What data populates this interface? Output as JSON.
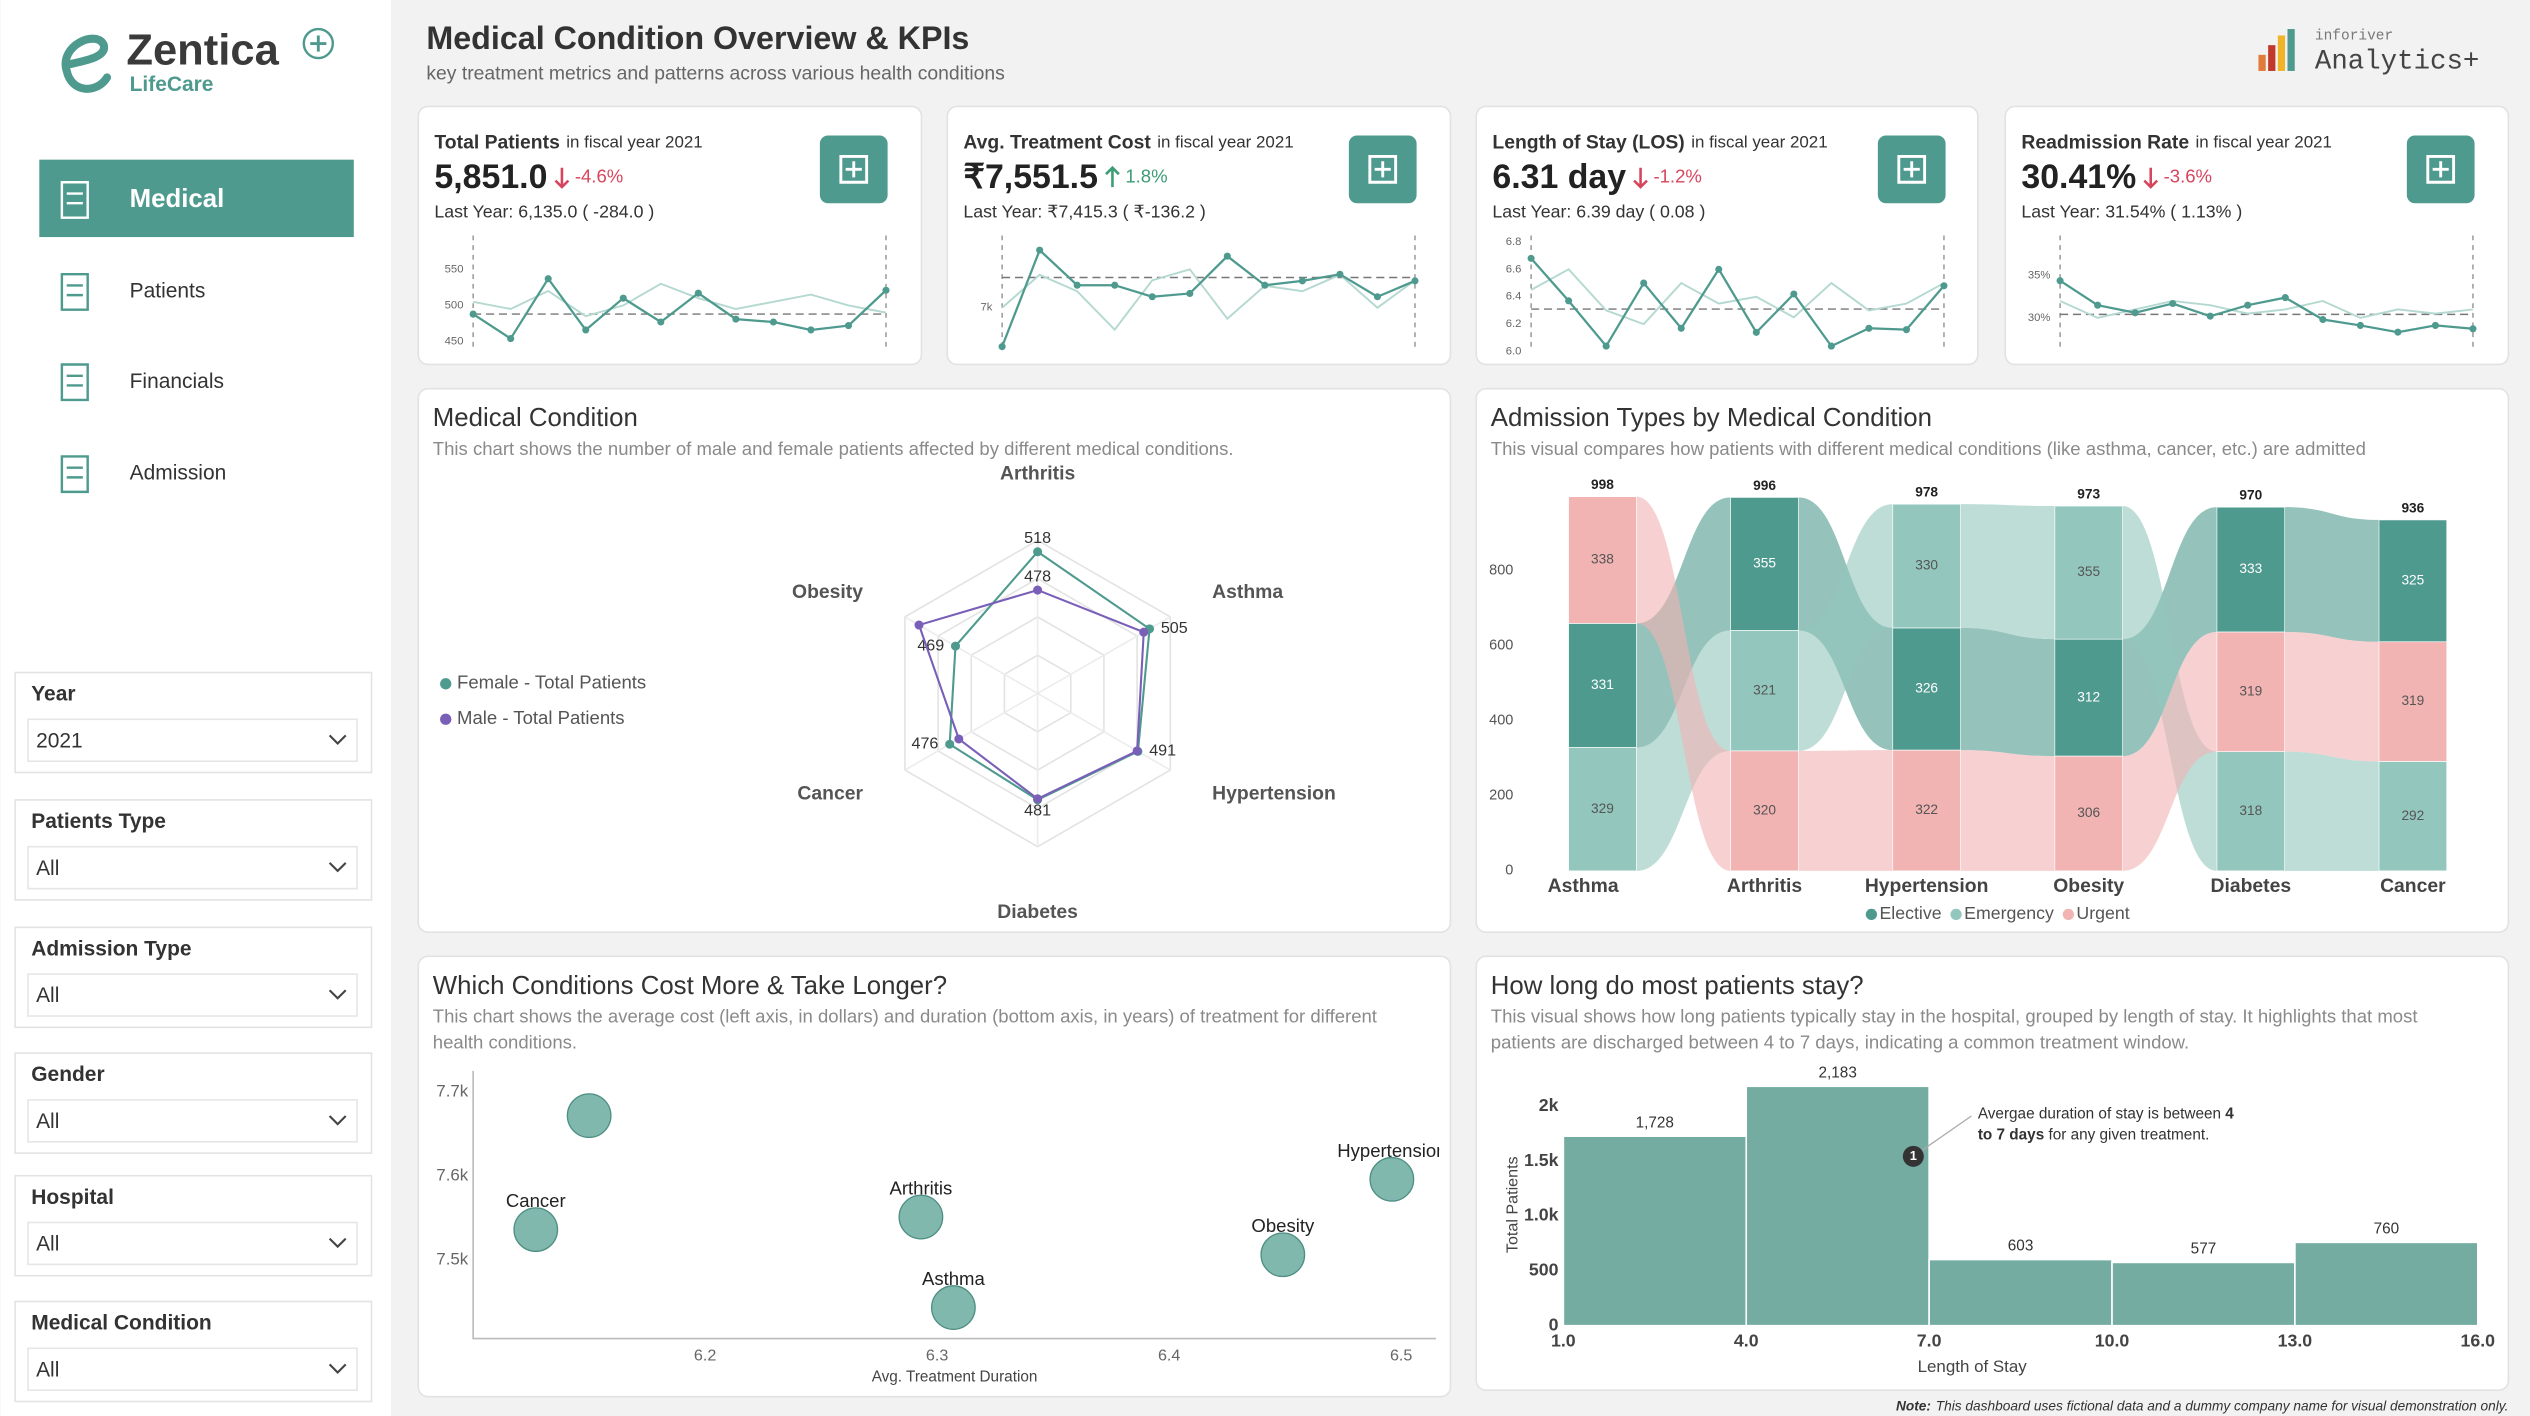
{
  "brand": {
    "name": "Zentica",
    "tagline": "LifeCare"
  },
  "nav": {
    "active": 0,
    "items": [
      "Medical",
      "Patients",
      "Financials",
      "Admission"
    ]
  },
  "filters": [
    {
      "label": "Year",
      "value": "2021"
    },
    {
      "label": "Patients Type",
      "value": "All"
    },
    {
      "label": "Admission Type",
      "value": "All"
    },
    {
      "label": "Gender",
      "value": "All"
    },
    {
      "label": "Hospital",
      "value": "All"
    },
    {
      "label": "Medical Condition",
      "value": "All"
    }
  ],
  "header": {
    "title": "Medical Condition Overview & KPIs",
    "subtitle": "key treatment metrics and patterns across various health conditions"
  },
  "vendor": {
    "name": "inforiver",
    "product": "Analytics+"
  },
  "note": {
    "label": "Note:",
    "text": "This dashboard uses fictional data and a dummy company name for visual demonstration only."
  },
  "chart_data": [
    {
      "type": "line",
      "title": "Total Patients",
      "subtitle": "in fiscal year 2021",
      "kpi_value": "5,851.0",
      "kpi_change": "-4.6%",
      "last_year": "Last Year: 6,135.0 ( -284.0 )",
      "ylim": [
        436,
        588
      ],
      "yticks": [
        450,
        500,
        550
      ],
      "reference": 488,
      "series": [
        {
          "color": "#b5d9d1",
          "values": [
            505,
            495,
            520,
            485,
            500,
            530,
            510,
            495,
            505,
            515,
            500,
            490
          ]
        },
        {
          "color": "#4e9a8e",
          "values": [
            488,
            454,
            537,
            466,
            510,
            477,
            517,
            481,
            477,
            466,
            472,
            521
          ]
        }
      ]
    },
    {
      "type": "line",
      "title": "Avg. Treatment Cost",
      "subtitle": "in fiscal year 2021",
      "kpi_value": "₹7,551.5",
      "kpi_change": "1.8%",
      "last_year": "Last Year: ₹7,415.3 ( ₹-136.2 )",
      "ylim": [
        6200,
        8200
      ],
      "yticks": [
        {
          "value": 7000,
          "label": "7k"
        }
      ],
      "reference": 7551,
      "series": [
        {
          "color": "#b5d9d1",
          "values": [
            7000,
            7600,
            7300,
            6600,
            7500,
            7700,
            6800,
            7400,
            7300,
            7600,
            7000,
            7500
          ]
        },
        {
          "color": "#4e9a8e",
          "values": [
            6290,
            8050,
            7410,
            7410,
            7200,
            7260,
            7940,
            7410,
            7490,
            7610,
            7200,
            7490
          ]
        }
      ]
    },
    {
      "type": "line",
      "title": "Length of Stay (LOS)",
      "subtitle": "in fiscal year 2021",
      "kpi_value": "6.31 day",
      "kpi_change": "-1.2%",
      "last_year": "Last Year: 6.39 day ( 0.08 )",
      "ylim": [
        6.0,
        6.8
      ],
      "yticks": [
        {
          "value": 6.0,
          "label": "6.0"
        },
        6.2,
        6.4,
        6.6,
        6.8
      ],
      "reference": 6.31,
      "series": [
        {
          "color": "#b5d9d1",
          "values": [
            6.45,
            6.6,
            6.3,
            6.2,
            6.5,
            6.35,
            6.4,
            6.25,
            6.5,
            6.3,
            6.35,
            6.5
          ]
        },
        {
          "color": "#4e9a8e",
          "values": [
            6.68,
            6.37,
            6.04,
            6.5,
            6.17,
            6.6,
            6.14,
            6.42,
            6.04,
            6.17,
            6.16,
            6.48
          ]
        }
      ]
    },
    {
      "type": "line",
      "title": "Readmission Rate",
      "subtitle": "in fiscal year 2021",
      "kpi_value": "30.41%",
      "kpi_change": "-3.6%",
      "last_year": "Last Year: 31.54% ( 1.13% )",
      "ylim": [
        26,
        39
      ],
      "yticks": [
        {
          "value": 30,
          "label": "30%"
        },
        {
          "value": 35,
          "label": "35%"
        }
      ],
      "reference": 30.41,
      "series": [
        {
          "color": "#b5d9d1",
          "values": [
            32,
            30,
            31,
            32,
            31.5,
            30.5,
            31,
            32,
            30,
            31,
            30.5,
            31
          ]
        },
        {
          "color": "#4e9a8e",
          "values": [
            34.4,
            31.5,
            30.6,
            31.7,
            30.2,
            31.5,
            32.4,
            29.8,
            29.1,
            28.3,
            29.1,
            28.7
          ]
        }
      ]
    },
    {
      "type": "radar",
      "title": "Medical Condition",
      "description": [
        "This chart shows the number of male and female patients affected by different medical conditions."
      ],
      "categories": [
        "Arthritis",
        "Asthma",
        "Hypertension",
        "Diabetes",
        "Cancer",
        "Obesity"
      ],
      "rlim": [
        370,
        530
      ],
      "series": [
        {
          "name": "Female - Total Patients",
          "color": "#4e9a8e",
          "values": [
            518,
            505,
            491,
            481,
            476,
            469
          ]
        },
        {
          "name": "Male - Total Patients",
          "color": "#7a5fb8",
          "values": [
            478,
            498,
            490,
            480,
            465,
            513
          ],
          "value_labels": [
            "478",
            null,
            null,
            null,
            null,
            null
          ]
        }
      ]
    },
    {
      "type": "ribbon",
      "title": "Admission Types by Medical Condition",
      "description": [
        "This visual compares how patients with different medical conditions (like asthma, cancer, etc.) are admitted"
      ],
      "categories": [
        "Asthma",
        "Arthritis",
        "Hypertension",
        "Obesity",
        "Diabetes",
        "Cancer"
      ],
      "ylim": [
        0,
        1000
      ],
      "yticks": [
        0,
        200,
        400,
        600,
        800
      ],
      "totals": [
        998,
        996,
        978,
        973,
        970,
        936
      ],
      "series": [
        {
          "name": "Elective",
          "color": "#4e9a8e",
          "values": [
            331,
            355,
            326,
            312,
            333,
            325
          ]
        },
        {
          "name": "Emergency",
          "color": "#93c7bd",
          "values": [
            329,
            321,
            330,
            355,
            318,
            292
          ]
        },
        {
          "name": "Urgent",
          "color": "#f2b3b3",
          "values": [
            338,
            320,
            322,
            306,
            319,
            319
          ]
        }
      ]
    },
    {
      "type": "scatter",
      "title": "Which Conditions Cost More & Take Longer?",
      "description": [
        "This chart shows the average cost (left axis, in dollars) and duration (bottom axis, in years) of treatment for different",
        "health conditions."
      ],
      "x_label": "Avg. Treatment Duration",
      "labels": [
        null,
        "Cancer",
        "Arthritis",
        "Asthma",
        "Obesity",
        "Hypertension"
      ],
      "x": [
        6.15,
        6.127,
        6.293,
        6.307,
        6.449,
        6.496
      ],
      "values": [
        7672,
        7536,
        7551,
        7443,
        7506,
        7596
      ],
      "color": "#6aab9f",
      "xlim": [
        6.1,
        6.515
      ],
      "ylim": [
        7406,
        7710
      ],
      "xticks": [
        6.2,
        6.3,
        6.4,
        6.5
      ],
      "yticks": [
        {
          "value": 7500,
          "label": "7.5k"
        },
        {
          "value": 7600,
          "label": "7.6k"
        },
        {
          "value": 7700,
          "label": "7.7k"
        }
      ]
    },
    {
      "type": "histogram",
      "title": "How long do most patients stay?",
      "description": [
        "This visual shows how long patients typically stay in the hospital, grouped by length of stay. It highlights that most",
        "patients are discharged between 4 to 7 days, indicating a common treatment window."
      ],
      "x_label": "Length of Stay",
      "y_label": "Total Patients",
      "color": "#74aca2",
      "bins": [
        1,
        4,
        7,
        10,
        13,
        16
      ],
      "values": [
        1728,
        2183,
        603,
        577,
        760
      ],
      "value_labels": [
        "1,728",
        "2,183",
        "603",
        "577",
        "760"
      ],
      "xlim": [
        1,
        16
      ],
      "ylim": [
        0,
        2300
      ],
      "xticks": [
        {
          "value": 1,
          "label": "1.0"
        },
        {
          "value": 4,
          "label": "4.0"
        },
        {
          "value": 7,
          "label": "7.0"
        },
        {
          "value": 10,
          "label": "10.0"
        },
        {
          "value": 13,
          "label": "13.0"
        },
        {
          "value": 16,
          "label": "16.0"
        }
      ],
      "yticks": [
        0,
        500,
        {
          "value": 1000,
          "label": "1.0k"
        },
        {
          "value": 1500,
          "label": "1.5k"
        },
        {
          "value": 2000,
          "label": "2k"
        }
      ],
      "annotation": {
        "marker": "1",
        "lines": [
          [
            {
              "text": "Avergae duration of stay is between "
            },
            {
              "text": "4",
              "bold": true
            }
          ],
          [
            {
              "text": "to 7 days",
              "bold": true
            },
            {
              "text": " for any given treatment."
            }
          ]
        ]
      }
    }
  ]
}
